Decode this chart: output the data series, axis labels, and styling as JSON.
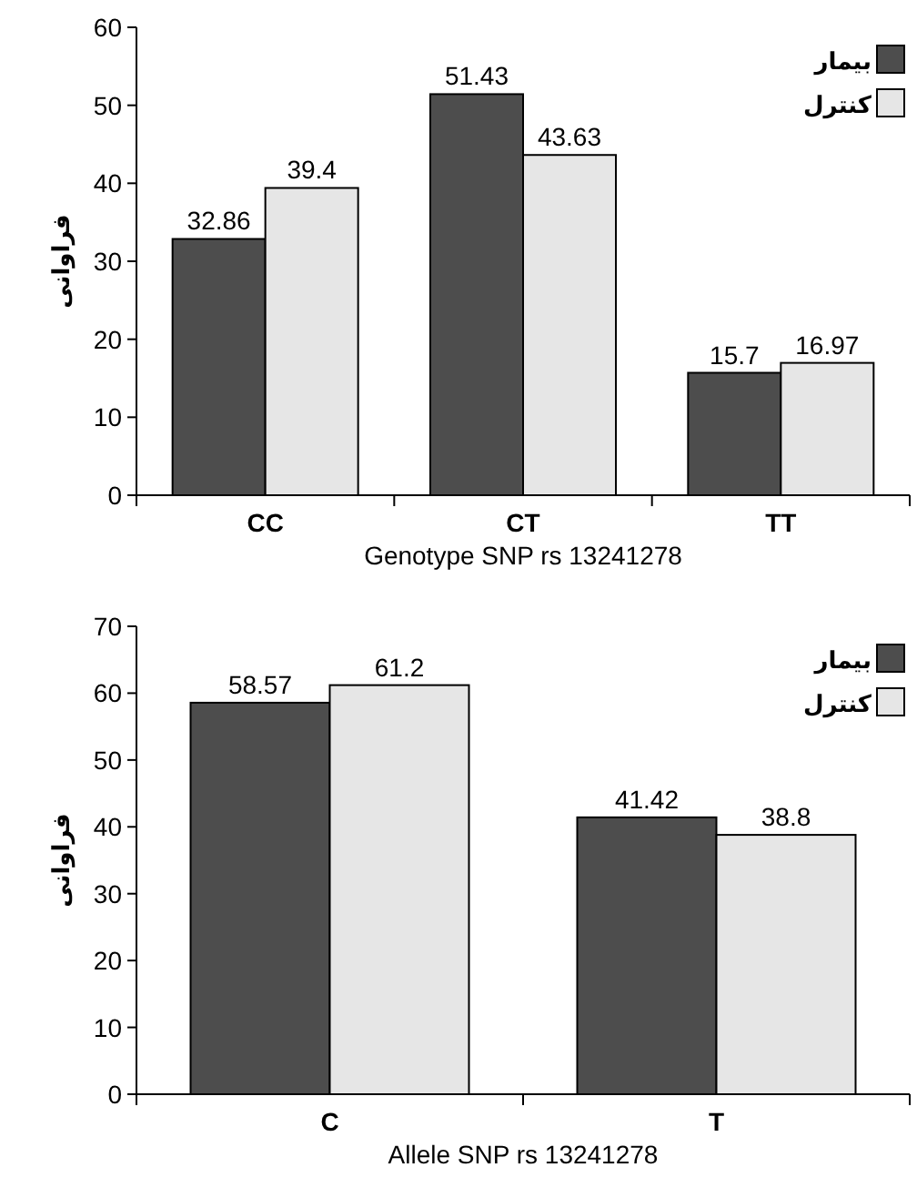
{
  "chart_data": [
    {
      "type": "bar",
      "categories": [
        "CC",
        "CT",
        "TT"
      ],
      "xlabel": "Genotype SNP rs 13241278",
      "ylabel": "فراوانی",
      "ylim": [
        0,
        60
      ],
      "yticks": [
        0,
        10,
        20,
        30,
        40,
        50,
        60
      ],
      "data_labels": true,
      "legend": "top right",
      "series": [
        {
          "name": "بیمار",
          "color": "#4d4d4d",
          "values": [
            32.86,
            51.43,
            15.7
          ]
        },
        {
          "name": "کنترل",
          "color": "#e6e6e6",
          "values": [
            39.4,
            43.63,
            16.97
          ]
        }
      ]
    },
    {
      "type": "bar",
      "categories": [
        "C",
        "T"
      ],
      "xlabel": "Allele SNP rs 13241278",
      "ylabel": "فراوانی",
      "ylim": [
        0,
        70
      ],
      "yticks": [
        0,
        10,
        20,
        30,
        40,
        50,
        60,
        70
      ],
      "data_labels": true,
      "legend": "top right",
      "series": [
        {
          "name": "بیمار",
          "color": "#4d4d4d",
          "values": [
            58.57,
            41.42
          ]
        },
        {
          "name": "کنترل",
          "color": "#e6e6e6",
          "values": [
            61.2,
            38.8
          ]
        }
      ]
    }
  ]
}
